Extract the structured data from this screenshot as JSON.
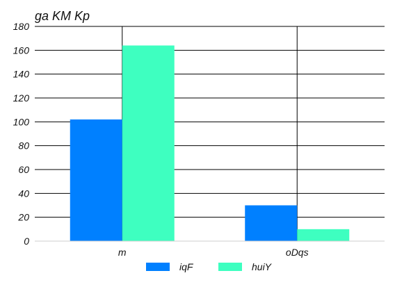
{
  "chart_data": {
    "type": "bar",
    "title": "ga KM  Kp",
    "xlabel": "",
    "ylabel": "",
    "categories": [
      "m",
      "oDqs"
    ],
    "series": [
      {
        "name": "iqF",
        "values": [
          102,
          30
        ],
        "color": "#0080ff"
      },
      {
        "name": "huiY",
        "values": [
          164,
          10
        ],
        "color": "#3effc0"
      }
    ],
    "ylim": [
      0,
      180
    ],
    "yticks": [
      0,
      20,
      40,
      60,
      80,
      100,
      120,
      140,
      160,
      180
    ],
    "grid": true,
    "legend": "bottom"
  }
}
